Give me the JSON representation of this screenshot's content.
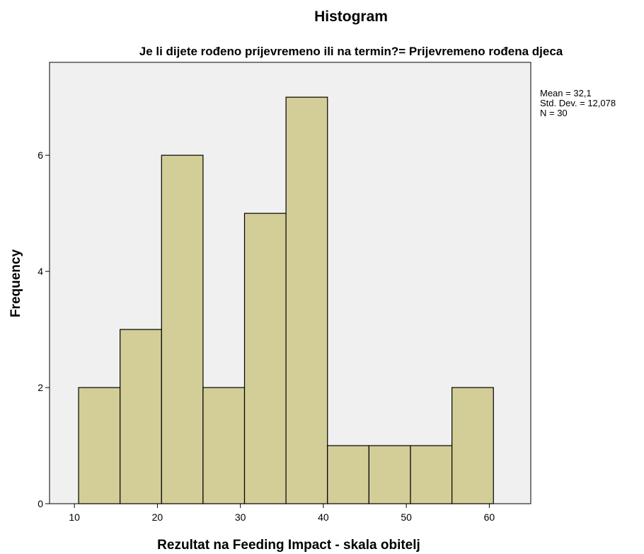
{
  "chart_data": {
    "type": "bar",
    "title": "Histogram",
    "subtitle": "Je li dijete rođeno prijevremeno ili na termin?= Prijevremeno rođena djeca",
    "xlabel": "Rezultat na Feeding Impact - skala obitelj",
    "ylabel": "Frequency",
    "bins": [
      {
        "start": 10.5,
        "end": 15.5,
        "value": 2
      },
      {
        "start": 15.5,
        "end": 20.5,
        "value": 3
      },
      {
        "start": 20.5,
        "end": 25.5,
        "value": 6
      },
      {
        "start": 25.5,
        "end": 30.5,
        "value": 2
      },
      {
        "start": 30.5,
        "end": 35.5,
        "value": 5
      },
      {
        "start": 35.5,
        "end": 40.5,
        "value": 7
      },
      {
        "start": 40.5,
        "end": 45.5,
        "value": 1
      },
      {
        "start": 45.5,
        "end": 50.5,
        "value": 1
      },
      {
        "start": 50.5,
        "end": 55.5,
        "value": 1
      },
      {
        "start": 55.5,
        "end": 60.5,
        "value": 2
      }
    ],
    "xlim": [
      7,
      65
    ],
    "ylim": [
      0,
      7.6
    ],
    "xticks": [
      10,
      20,
      30,
      40,
      50,
      60
    ],
    "yticks": [
      0,
      2,
      4,
      6
    ],
    "grid": false,
    "stats": [
      "Mean = 32,1",
      "Std. Dev. = 12,078",
      "N = 30"
    ],
    "colors": {
      "bar_fill": "#d3ce98",
      "plot_background": "#f0f0f0",
      "border": "#000000"
    }
  }
}
